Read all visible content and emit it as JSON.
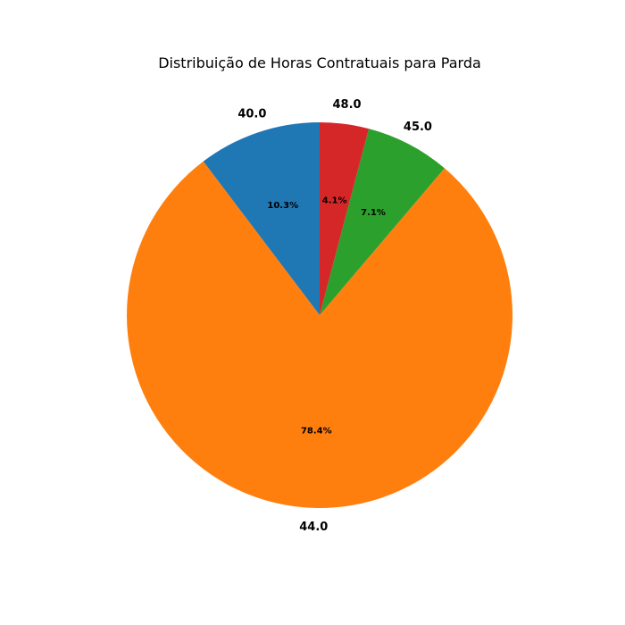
{
  "chart_data": {
    "type": "pie",
    "title": "Distribuição de Horas Contratuais para Parda",
    "categories": [
      "40.0",
      "44.0",
      "45.0",
      "48.0"
    ],
    "values": [
      10.3,
      78.4,
      7.1,
      4.1
    ],
    "percent_labels": [
      "10.3%",
      "78.4%",
      "7.1%",
      "4.1%"
    ],
    "colors": [
      "#1f77b4",
      "#ff7f0e",
      "#2ca02c",
      "#d62728"
    ],
    "start_angle_deg": 90,
    "direction": "counterclockwise",
    "legend": "none"
  }
}
